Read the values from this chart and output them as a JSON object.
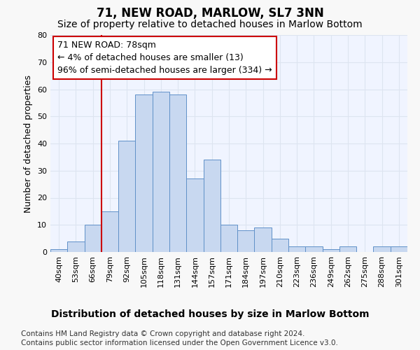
{
  "title": "71, NEW ROAD, MARLOW, SL7 3NN",
  "subtitle": "Size of property relative to detached houses in Marlow Bottom",
  "xlabel": "Distribution of detached houses by size in Marlow Bottom",
  "ylabel": "Number of detached properties",
  "categories": [
    "40sqm",
    "53sqm",
    "66sqm",
    "79sqm",
    "92sqm",
    "105sqm",
    "118sqm",
    "131sqm",
    "144sqm",
    "157sqm",
    "171sqm",
    "184sqm",
    "197sqm",
    "210sqm",
    "223sqm",
    "236sqm",
    "249sqm",
    "262sqm",
    "275sqm",
    "288sqm",
    "301sqm"
  ],
  "values": [
    1,
    4,
    10,
    15,
    41,
    58,
    59,
    58,
    27,
    34,
    10,
    8,
    9,
    5,
    2,
    2,
    1,
    2,
    0,
    2,
    2
  ],
  "bar_color": "#c8d8f0",
  "bar_edge_color": "#6090c8",
  "vline_index": 3,
  "vline_color": "#cc0000",
  "annotation_line1": "71 NEW ROAD: 78sqm",
  "annotation_line2": "← 4% of detached houses are smaller (13)",
  "annotation_line3": "96% of semi-detached houses are larger (334) →",
  "annotation_box_edge": "#cc0000",
  "ylim": [
    0,
    80
  ],
  "yticks": [
    0,
    10,
    20,
    30,
    40,
    50,
    60,
    70,
    80
  ],
  "footer1": "Contains HM Land Registry data © Crown copyright and database right 2024.",
  "footer2": "Contains public sector information licensed under the Open Government Licence v3.0.",
  "bg_color": "#f0f4ff",
  "fig_bg_color": "#f8f8f8",
  "grid_color": "#dde4f0",
  "title_fontsize": 12,
  "subtitle_fontsize": 10,
  "xlabel_fontsize": 10,
  "ylabel_fontsize": 9,
  "tick_fontsize": 8,
  "annot_fontsize": 9,
  "footer_fontsize": 7.5
}
